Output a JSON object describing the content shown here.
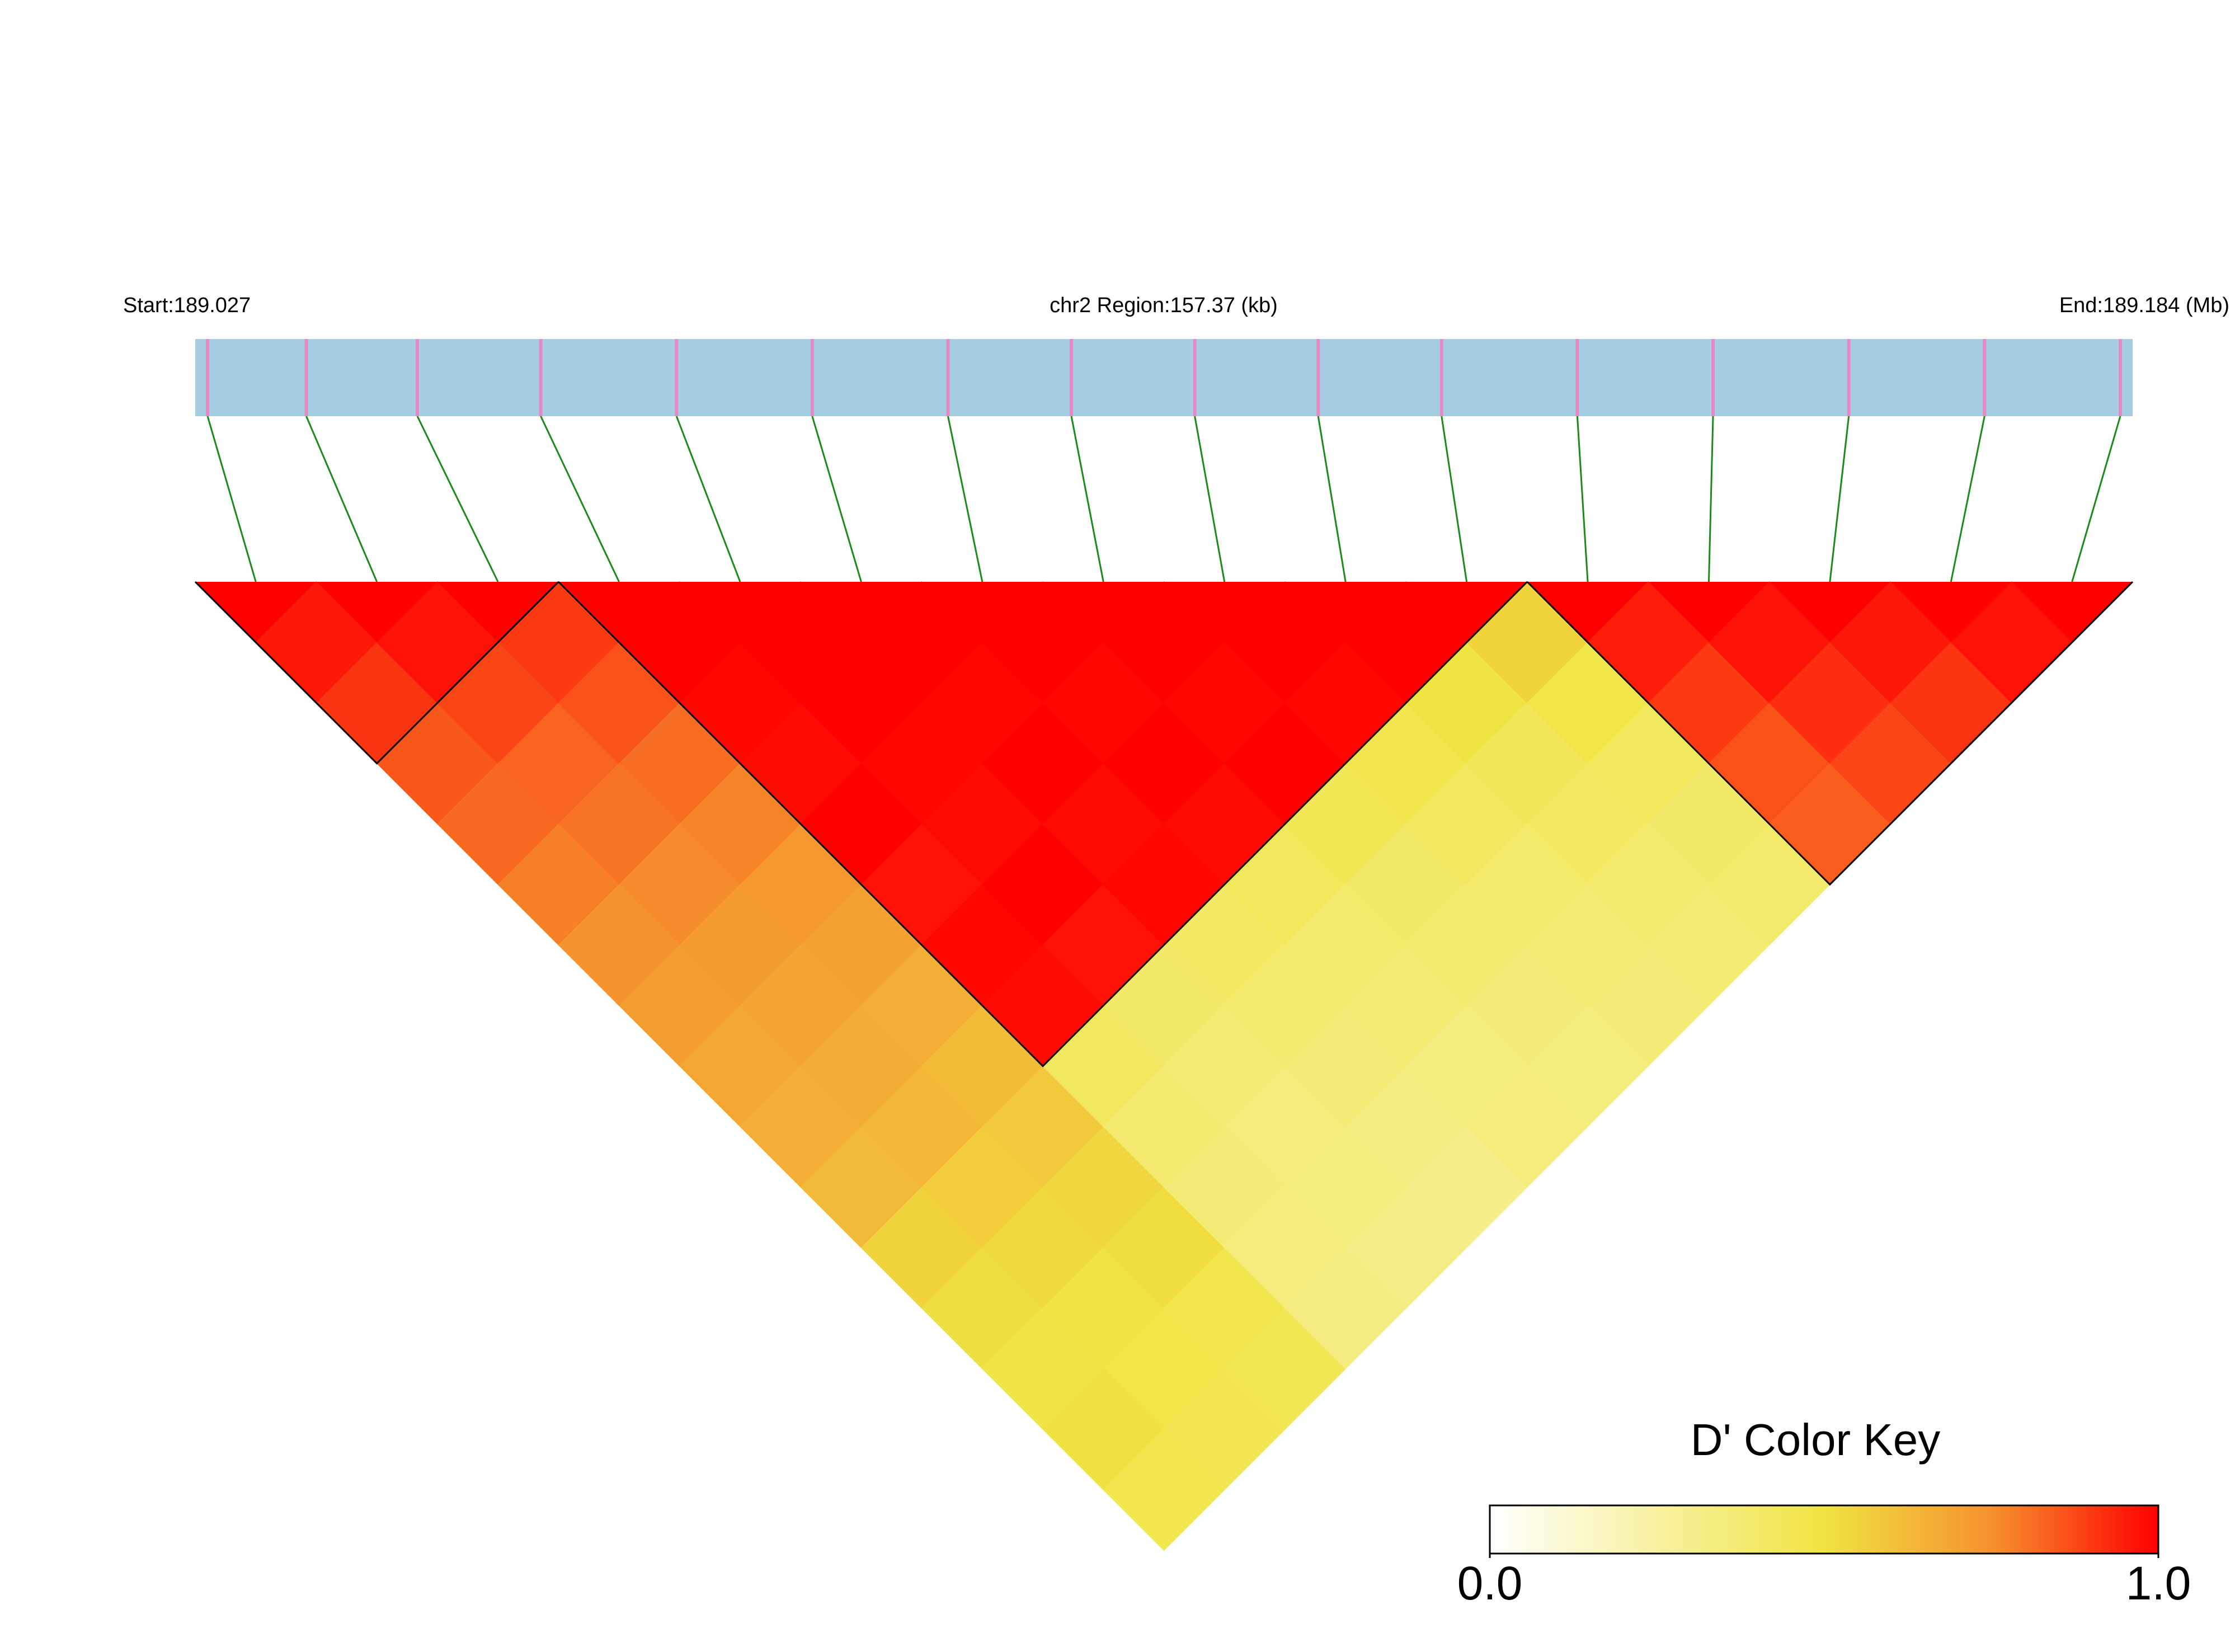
{
  "chart_data": {
    "type": "ld_heatmap",
    "start_label": "Start:189.027",
    "region_label": "chr2 Region:157.37 (kb)",
    "end_label": "End:189.184 (Mb)",
    "xlim": [
      189.027,
      189.184
    ],
    "x": [
      189.028,
      189.036,
      189.045,
      189.055,
      189.066,
      189.077,
      189.088,
      189.098,
      189.108,
      189.118,
      189.128,
      189.139,
      189.15,
      189.161,
      189.172,
      189.183
    ],
    "dprime": [
      [
        0.96,
        0.91,
        0.85,
        0.82,
        0.78,
        0.74,
        0.71,
        0.68,
        0.66,
        0.63,
        0.55,
        0.52,
        0.49,
        0.51,
        0.47
      ],
      [
        0.97,
        0.88,
        0.83,
        0.8,
        0.76,
        0.72,
        0.69,
        0.67,
        0.64,
        0.57,
        0.53,
        0.5,
        0.48,
        0.46
      ],
      [
        0.9,
        0.86,
        0.81,
        0.77,
        0.73,
        0.7,
        0.66,
        0.62,
        0.58,
        0.54,
        0.52,
        0.47,
        0.45
      ],
      [
        1,
        0.99,
        0.98,
        1,
        0.97,
        0.99,
        0.98,
        0.42,
        0.38,
        0.36,
        0.35,
        0.33
      ],
      [
        1,
        1,
        0.99,
        0.98,
        1,
        0.97,
        0.4,
        0.37,
        0.35,
        0.34,
        0.32
      ],
      [
        1,
        0.99,
        1,
        0.98,
        0.99,
        0.41,
        0.38,
        0.36,
        0.33,
        0.31
      ],
      [
        1,
        0.99,
        1,
        0.98,
        0.43,
        0.39,
        0.37,
        0.34,
        0.35
      ],
      [
        1,
        0.99,
        1,
        0.45,
        0.4,
        0.38,
        0.36,
        0.34
      ],
      [
        1,
        0.99,
        0.47,
        0.42,
        0.39,
        0.37,
        0.36
      ],
      [
        1,
        0.5,
        0.44,
        0.41,
        0.38,
        0.37
      ],
      [
        0.55,
        0.48,
        0.43,
        0.4,
        0.39
      ],
      [
        0.95,
        0.9,
        0.86,
        0.84
      ],
      [
        0.97,
        0.92,
        0.88
      ],
      [
        0.96,
        0.91
      ],
      [
        0.97
      ]
    ],
    "blocks": [
      [
        0,
        2
      ],
      [
        3,
        10
      ],
      [
        11,
        15
      ]
    ],
    "track_color": "#a6cee3",
    "snp_color": "#e78ac3",
    "link_color": "#1a8a1a",
    "key_title": "D' Color Key",
    "colorscale": [
      {
        "value": 0,
        "color": "#ffffff"
      },
      {
        "value": 0.5,
        "color": "#f0e442"
      },
      {
        "value": 0.75,
        "color": "#f5912e"
      },
      {
        "value": 1,
        "color": "#ff0000"
      }
    ],
    "key_ticks": [
      {
        "value": 0,
        "label": "0.0"
      },
      {
        "value": 1,
        "label": "1.0"
      }
    ]
  }
}
